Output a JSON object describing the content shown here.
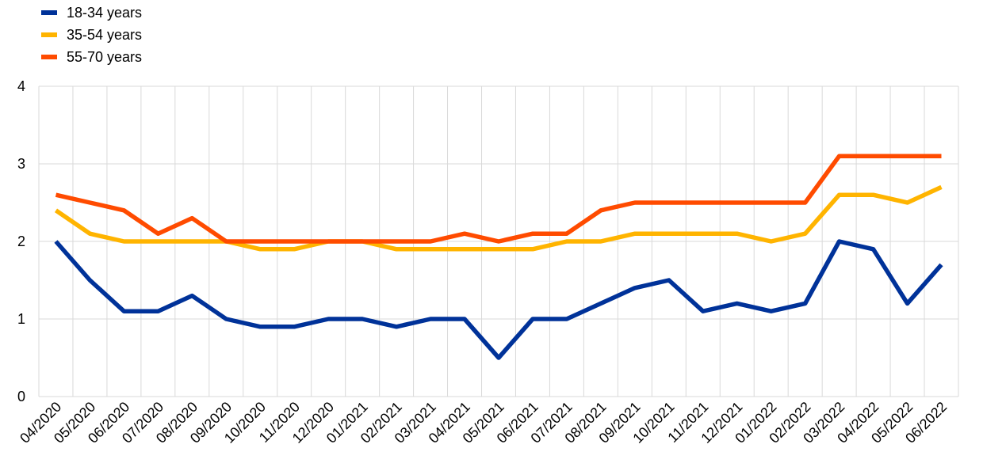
{
  "chart_data": {
    "type": "line",
    "categories": [
      "04/2020",
      "05/2020",
      "06/2020",
      "07/2020",
      "08/2020",
      "09/2020",
      "10/2020",
      "11/2020",
      "12/2020",
      "01/2021",
      "02/2021",
      "03/2021",
      "04/2021",
      "05/2021",
      "06/2021",
      "07/2021",
      "08/2021",
      "09/2021",
      "10/2021",
      "11/2021",
      "12/2021",
      "01/2022",
      "02/2022",
      "03/2022",
      "04/2022",
      "05/2022",
      "06/2022"
    ],
    "series": [
      {
        "name": "18-34 years",
        "color": "#003299",
        "values": [
          2.0,
          1.5,
          1.1,
          1.1,
          1.3,
          1.0,
          0.9,
          0.9,
          1.0,
          1.0,
          0.9,
          1.0,
          1.0,
          0.5,
          1.0,
          1.0,
          1.2,
          1.4,
          1.5,
          1.1,
          1.2,
          1.1,
          1.2,
          2.0,
          1.9,
          1.2,
          1.7
        ]
      },
      {
        "name": "35-54 years",
        "color": "#FFB400",
        "values": [
          2.4,
          2.1,
          2.0,
          2.0,
          2.0,
          2.0,
          1.9,
          1.9,
          2.0,
          2.0,
          1.9,
          1.9,
          1.9,
          1.9,
          1.9,
          2.0,
          2.0,
          2.1,
          2.1,
          2.1,
          2.1,
          2.0,
          2.1,
          2.6,
          2.6,
          2.5,
          2.7
        ]
      },
      {
        "name": "55-70 years",
        "color": "#FF4B00",
        "values": [
          2.6,
          2.5,
          2.4,
          2.1,
          2.3,
          2.0,
          2.0,
          2.0,
          2.0,
          2.0,
          2.0,
          2.0,
          2.1,
          2.0,
          2.1,
          2.1,
          2.4,
          2.5,
          2.5,
          2.5,
          2.5,
          2.5,
          2.5,
          3.1,
          3.1,
          3.1,
          3.1
        ]
      }
    ],
    "ylim": [
      0,
      4
    ],
    "yticks": [
      "0",
      "1",
      "2",
      "3",
      "4"
    ],
    "grid": true,
    "legend_position": "top-left"
  }
}
